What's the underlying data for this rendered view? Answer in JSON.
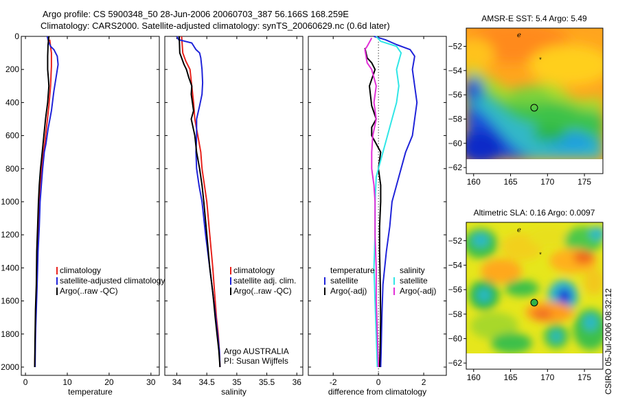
{
  "header": {
    "title_line1": "Argo profile: CS 5900348_50 28-Jun-2006 20060703_387 56.166S 168.259E",
    "title_line2": "Climatology: CARS2000. Satellite-adjusted climatology: synTS_20060629.nc (0.6d later)"
  },
  "colors": {
    "red": "#e8221c",
    "blue": "#1f23d9",
    "black": "#000000",
    "cyan": "#2fe6e6",
    "magenta": "#e22fd7"
  },
  "chart_data": [
    {
      "id": "temperature",
      "type": "line",
      "xlabel": "temperature",
      "xlim": [
        -1,
        32
      ],
      "ylim": [
        0,
        2050
      ],
      "xticks": [
        0,
        10,
        20,
        30
      ],
      "yticks": [
        0,
        200,
        400,
        600,
        800,
        1000,
        1200,
        1400,
        1600,
        1800,
        2000
      ],
      "legend": [
        "climatology",
        "satellite-adjusted climatology",
        "Argo(..raw -QC)"
      ],
      "series": [
        {
          "name": "climatology",
          "color": "red",
          "points": [
            [
              5.8,
              20
            ],
            [
              6.0,
              60
            ],
            [
              6.2,
              100
            ],
            [
              6.2,
              180
            ],
            [
              6.0,
              300
            ],
            [
              5.6,
              420
            ],
            [
              5.0,
              560
            ],
            [
              4.6,
              650
            ],
            [
              4.3,
              700
            ],
            [
              3.9,
              800
            ],
            [
              3.6,
              900
            ],
            [
              3.3,
              1000
            ],
            [
              3.1,
              1150
            ],
            [
              2.9,
              1300
            ],
            [
              2.7,
              1500
            ],
            [
              2.5,
              1650
            ],
            [
              2.4,
              1800
            ],
            [
              2.2,
              2000
            ]
          ]
        },
        {
          "name": "satellite-adjusted climatology",
          "color": "blue",
          "points": [
            [
              5.2,
              0
            ],
            [
              5.5,
              30
            ],
            [
              6.0,
              60
            ],
            [
              6.8,
              80
            ],
            [
              7.6,
              120
            ],
            [
              7.8,
              170
            ],
            [
              7.3,
              250
            ],
            [
              6.8,
              330
            ],
            [
              6.2,
              450
            ],
            [
              5.4,
              560
            ],
            [
              4.9,
              650
            ],
            [
              4.5,
              700
            ],
            [
              4.1,
              800
            ],
            [
              3.8,
              900
            ],
            [
              3.5,
              1000
            ],
            [
              3.3,
              1150
            ],
            [
              3.0,
              1300
            ],
            [
              2.8,
              1500
            ],
            [
              2.6,
              1650
            ],
            [
              2.4,
              1800
            ],
            [
              2.3,
              2000
            ]
          ]
        },
        {
          "name": "Argo(..raw -QC)",
          "color": "black",
          "points": [
            [
              5.6,
              0
            ],
            [
              5.4,
              50
            ],
            [
              5.3,
              120
            ],
            [
              5.3,
              200
            ],
            [
              5.5,
              260
            ],
            [
              5.6,
              300
            ],
            [
              5.3,
              400
            ],
            [
              4.8,
              500
            ],
            [
              4.4,
              600
            ],
            [
              4.0,
              700
            ],
            [
              3.6,
              800
            ],
            [
              3.3,
              900
            ],
            [
              3.1,
              1000
            ],
            [
              2.9,
              1150
            ],
            [
              2.7,
              1300
            ],
            [
              2.6,
              1500
            ],
            [
              2.4,
              1650
            ],
            [
              2.3,
              1800
            ],
            [
              2.2,
              2000
            ]
          ]
        }
      ]
    },
    {
      "id": "salinity",
      "type": "line",
      "xlabel": "salinity",
      "xlim": [
        33.8,
        36.1
      ],
      "ylim": [
        0,
        2050
      ],
      "xticks": [
        34,
        34.5,
        35,
        35.5,
        36
      ],
      "xtick_labels": [
        "34",
        "34.5",
        "35",
        "35.5",
        "36"
      ],
      "legend": [
        "climatology",
        "satellite adj. clim.",
        "Argo(..raw -QC)"
      ],
      "annotation": [
        "Argo AUSTRALIA",
        "PI: Susan Wijffels"
      ],
      "series": [
        {
          "name": "climatology",
          "color": "red",
          "points": [
            [
              34.08,
              0
            ],
            [
              34.1,
              100
            ],
            [
              34.15,
              150
            ],
            [
              34.22,
              200
            ],
            [
              34.25,
              300
            ],
            [
              34.28,
              400
            ],
            [
              34.3,
              500
            ],
            [
              34.35,
              600
            ],
            [
              34.4,
              700
            ],
            [
              34.42,
              800
            ],
            [
              34.46,
              900
            ],
            [
              34.5,
              1000
            ],
            [
              34.55,
              1200
            ],
            [
              34.6,
              1400
            ],
            [
              34.63,
              1550
            ],
            [
              34.66,
              1700
            ],
            [
              34.69,
              1800
            ],
            [
              34.71,
              1900
            ],
            [
              34.72,
              2000
            ]
          ]
        },
        {
          "name": "satellite adj. clim.",
          "color": "blue",
          "points": [
            [
              34.0,
              0
            ],
            [
              34.03,
              20
            ],
            [
              34.25,
              40
            ],
            [
              34.32,
              80
            ],
            [
              34.38,
              100
            ],
            [
              34.4,
              130
            ],
            [
              34.42,
              200
            ],
            [
              34.43,
              280
            ],
            [
              34.42,
              350
            ],
            [
              34.38,
              420
            ],
            [
              34.33,
              500
            ],
            [
              34.33,
              600
            ],
            [
              34.32,
              700
            ],
            [
              34.33,
              800
            ],
            [
              34.37,
              900
            ],
            [
              34.42,
              1000
            ],
            [
              34.48,
              1200
            ],
            [
              34.55,
              1400
            ],
            [
              34.6,
              1550
            ],
            [
              34.65,
              1700
            ],
            [
              34.68,
              1800
            ],
            [
              34.71,
              1900
            ],
            [
              34.72,
              2000
            ]
          ]
        },
        {
          "name": "Argo(..raw -QC)",
          "color": "black",
          "points": [
            [
              34.04,
              0
            ],
            [
              34.05,
              100
            ],
            [
              34.12,
              170
            ],
            [
              34.16,
              200
            ],
            [
              34.2,
              250
            ],
            [
              34.25,
              300
            ],
            [
              34.24,
              350
            ],
            [
              34.26,
              400
            ],
            [
              34.28,
              450
            ],
            [
              34.24,
              500
            ],
            [
              34.27,
              550
            ],
            [
              34.3,
              600
            ],
            [
              34.33,
              700
            ],
            [
              34.38,
              800
            ],
            [
              34.42,
              900
            ],
            [
              34.45,
              1000
            ],
            [
              34.5,
              1200
            ],
            [
              34.55,
              1400
            ],
            [
              34.6,
              1550
            ],
            [
              34.64,
              1700
            ],
            [
              34.67,
              1800
            ],
            [
              34.7,
              1900
            ],
            [
              34.72,
              2000
            ]
          ]
        }
      ]
    },
    {
      "id": "difference",
      "type": "line",
      "xlabel": "difference from climatology",
      "xlim": [
        -3.1,
        3.0
      ],
      "ylim": [
        0,
        2050
      ],
      "xticks": [
        -2,
        0,
        2
      ],
      "legend": [
        {
          "group": "temperature",
          "label": "satellite",
          "color": "blue"
        },
        {
          "group": "temperature",
          "label": "Argo(-adj)",
          "color": "black"
        },
        {
          "group": "salinity",
          "label": "satellite",
          "color": "cyan"
        },
        {
          "group": "salinity",
          "label": "Argo(-adj)",
          "color": "magenta"
        }
      ],
      "legend_headers": [
        "temperature",
        "salinity"
      ],
      "series": [
        {
          "name": "temperature satellite",
          "color": "blue",
          "points": [
            [
              -0.2,
              0
            ],
            [
              0.3,
              20
            ],
            [
              0.8,
              50
            ],
            [
              1.4,
              80
            ],
            [
              1.6,
              120
            ],
            [
              1.5,
              200
            ],
            [
              1.6,
              300
            ],
            [
              1.7,
              400
            ],
            [
              1.6,
              500
            ],
            [
              1.5,
              600
            ],
            [
              1.2,
              700
            ],
            [
              1.0,
              800
            ],
            [
              0.8,
              900
            ],
            [
              0.6,
              1000
            ],
            [
              0.5,
              1150
            ],
            [
              0.35,
              1300
            ],
            [
              0.2,
              1500
            ],
            [
              0.15,
              1700
            ],
            [
              0.12,
              1900
            ],
            [
              0.1,
              2000
            ]
          ]
        },
        {
          "name": "temperature Argo(-adj)",
          "color": "black",
          "points": [
            [
              -0.6,
              70
            ],
            [
              -0.5,
              130
            ],
            [
              -0.3,
              160
            ],
            [
              -0.15,
              200
            ],
            [
              -0.4,
              300
            ],
            [
              -0.3,
              420
            ],
            [
              -0.1,
              500
            ],
            [
              -0.3,
              550
            ],
            [
              -0.3,
              600
            ],
            [
              -0.1,
              650
            ],
            [
              0.1,
              700
            ],
            [
              0.0,
              800
            ],
            [
              0.1,
              900
            ],
            [
              0.1,
              1000
            ],
            [
              0.05,
              1150
            ],
            [
              0.05,
              1300
            ],
            [
              0.08,
              1500
            ],
            [
              0.1,
              1700
            ],
            [
              0.08,
              1850
            ],
            [
              0.05,
              2000
            ]
          ]
        },
        {
          "name": "salinity satellite",
          "color": "cyan",
          "points": [
            [
              -0.1,
              0
            ],
            [
              0.1,
              30
            ],
            [
              0.8,
              60
            ],
            [
              1.0,
              100
            ],
            [
              0.8,
              200
            ],
            [
              0.9,
              300
            ],
            [
              0.8,
              400
            ],
            [
              0.7,
              450
            ],
            [
              0.5,
              550
            ],
            [
              0.3,
              650
            ],
            [
              0.1,
              750
            ],
            [
              -0.1,
              850
            ],
            [
              -0.15,
              1000
            ],
            [
              -0.15,
              1200
            ],
            [
              -0.2,
              1400
            ],
            [
              -0.15,
              1600
            ],
            [
              -0.1,
              1800
            ],
            [
              -0.05,
              2000
            ]
          ]
        },
        {
          "name": "salinity Argo(-adj)",
          "color": "magenta",
          "points": [
            [
              -0.3,
              10
            ],
            [
              -0.5,
              60
            ],
            [
              -0.6,
              80
            ],
            [
              -0.5,
              160
            ],
            [
              -0.3,
              200
            ],
            [
              -0.1,
              300
            ],
            [
              -0.2,
              400
            ],
            [
              -0.1,
              500
            ],
            [
              -0.25,
              600
            ],
            [
              -0.3,
              700
            ],
            [
              -0.3,
              800
            ],
            [
              -0.2,
              900
            ],
            [
              -0.15,
              1000
            ],
            [
              -0.15,
              1200
            ],
            [
              -0.1,
              1400
            ],
            [
              -0.1,
              1600
            ],
            [
              -0.05,
              1800
            ],
            [
              0.0,
              2000
            ]
          ]
        }
      ]
    },
    {
      "id": "sst_map",
      "type": "heatmap",
      "title": "AMSR-E SST: 5.4 Argo: 5.49",
      "xlim": [
        159,
        177.5
      ],
      "ylim": [
        -62.5,
        -50.5
      ],
      "xticks": [
        160,
        165,
        170,
        175
      ],
      "yticks": [
        -52,
        -54,
        -56,
        -58,
        -60,
        -62
      ]
    },
    {
      "id": "sla_map",
      "type": "heatmap",
      "title": "Altimetric SLA: 0.16 Argo: 0.0097",
      "xlim": [
        159,
        177.5
      ],
      "ylim": [
        -62.5,
        -50.5
      ],
      "xticks": [
        160,
        165,
        170,
        175
      ],
      "yticks": [
        -52,
        -54,
        -56,
        -58,
        -60,
        -62
      ]
    }
  ],
  "credit": "CSIRO 05-Jul-2006 08:32:12"
}
